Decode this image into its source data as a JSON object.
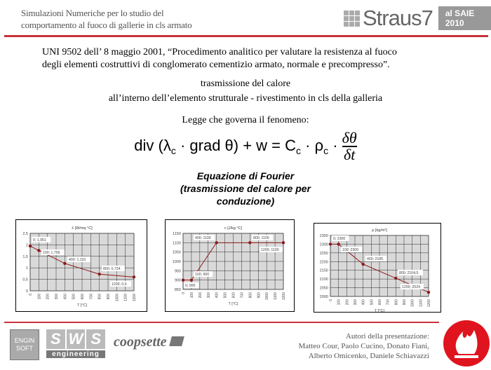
{
  "header": {
    "title_line1": "Simulazioni Numeriche per lo studio del",
    "title_line2": "comportamento al fuoco di gallerie in cls armato",
    "logo_text": "Straus7",
    "logo_badge": "al SAIE 2010",
    "accent_color": "#c8323c"
  },
  "body": {
    "paragraph_line1": "UNI 9502 dell’ 8 maggio 2001, “Procedimento analitico per valutare la resistenza al fuoco",
    "paragraph_line2": "degli elementi costruttivi di conglomerato cementizio armato, normale e precompresso”.",
    "subtitle1": "trasmissione del calore",
    "subtitle2": "all’interno dell’elemento strutturale - rivestimento in cls della galleria",
    "law_label": "Legge che governa il fenomeno:",
    "formula_lhs": "div (λ",
    "formula_lhs_sub": "c",
    "formula_mid": " · grad θ) + w = C",
    "formula_mid_sub": "c",
    "formula_rho": " · ρ",
    "formula_rho_sub": "c",
    "formula_dot": " · ",
    "formula_num": "δθ",
    "formula_den": "δt",
    "caption_line1": "Equazione di Fourier",
    "caption_line2": "(trasmissione del calore per",
    "caption_line3": "conduzione)"
  },
  "chart_data": [
    {
      "type": "line",
      "title": "λ [W/mq °C]",
      "xlabel": "T [°C]",
      "xlim": [
        0,
        1200
      ],
      "xticks": [
        0,
        100,
        200,
        300,
        400,
        500,
        600,
        700,
        800,
        900,
        1000,
        1100,
        1200
      ],
      "ylim": [
        0,
        2.5
      ],
      "yticks": [
        "0",
        "0,5",
        "1",
        "1,5",
        "2",
        "2,5"
      ],
      "grid": true,
      "x": [
        0,
        100,
        400,
        800,
        1200
      ],
      "y": [
        1.951,
        1.756,
        1.191,
        0.724,
        0.6
      ],
      "labels": [
        "0; 1,951",
        "100; 1,756",
        "400; 1,191",
        "800; 0,724",
        "1200; 0,6"
      ]
    },
    {
      "type": "line",
      "title": "c [J/kg °C]",
      "xlabel": "T [°C]",
      "xlim": [
        0,
        1200
      ],
      "xticks": [
        0,
        100,
        200,
        300,
        400,
        500,
        600,
        700,
        800,
        900,
        1000,
        1100,
        1200
      ],
      "ylim": [
        850,
        1150
      ],
      "yticks": [
        "850",
        "900",
        "950",
        "1000",
        "1050",
        "1100",
        "1150"
      ],
      "grid": true,
      "x": [
        0,
        100,
        400,
        800,
        1200
      ],
      "y": [
        900,
        900,
        1100,
        1100,
        1100
      ],
      "labels": [
        "0; 900",
        "100; 900",
        "400; 1100",
        "800; 1100",
        "1200; 1100"
      ]
    },
    {
      "type": "line",
      "title": "ρ [kg/m³]",
      "xlabel": "T [°C]",
      "xlim": [
        0,
        1200
      ],
      "xticks": [
        0,
        100,
        200,
        300,
        400,
        500,
        600,
        700,
        800,
        900,
        1000,
        1100,
        1200
      ],
      "ylim": [
        2000,
        2350
      ],
      "yticks": [
        "2000",
        "2050",
        "2100",
        "2150",
        "2200",
        "2250",
        "2300",
        "2350"
      ],
      "grid": true,
      "x": [
        0,
        100,
        400,
        800,
        1200
      ],
      "y": [
        2300,
        2300,
        2185,
        2104.5,
        2024
      ],
      "labels": [
        "0; 2300",
        "100; 2300",
        "400; 2185",
        "800; 2104,5",
        "1200; 2024"
      ]
    }
  ],
  "chart_style": {
    "line_color": "#8b1a1a",
    "plot_bg": "#d9d9d9"
  },
  "footer": {
    "logo_enginsoft": "ENGIN SOFT",
    "logo_sws_letters": [
      "S",
      "W",
      "S"
    ],
    "logo_sws_sub": "engineering",
    "logo_coopsette": "coopsette",
    "authors_line1": "Autori della presentazione:",
    "authors_line2": "Matteo Cour, Paolo Cucino, Donato Fiani,",
    "authors_line3": "Alberto Omicenko, Daniele Schiavazzi"
  }
}
